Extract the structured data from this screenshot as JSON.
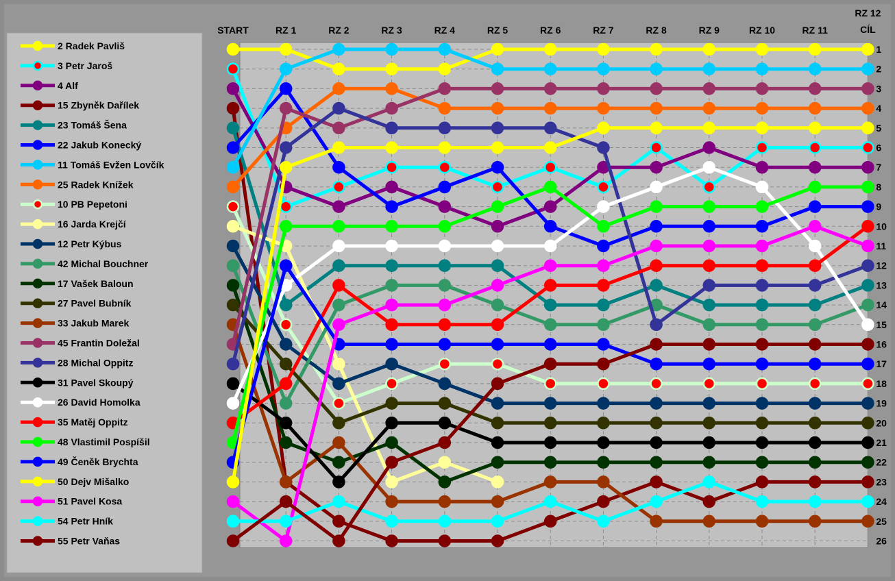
{
  "chart_data": {
    "type": "line",
    "title": "",
    "xlabel": "",
    "ylabel": "",
    "categories": [
      "START",
      "RZ 1",
      "RZ 2",
      "RZ 3",
      "RZ 4",
      "RZ 5",
      "RZ 6",
      "RZ 7",
      "RZ 8",
      "RZ 9",
      "RZ 10",
      "RZ 11",
      "RZ 12 CÍL"
    ],
    "category_labels": [
      [
        "START"
      ],
      [
        "RZ 1"
      ],
      [
        "RZ 2"
      ],
      [
        "RZ 3"
      ],
      [
        "RZ 4"
      ],
      [
        "RZ 5"
      ],
      [
        "RZ 6"
      ],
      [
        "RZ 7"
      ],
      [
        "RZ 8"
      ],
      [
        "RZ 9"
      ],
      [
        "RZ 10"
      ],
      [
        "RZ 11"
      ],
      [
        "RZ 12",
        "CÍL"
      ]
    ],
    "y_positions": [
      "1",
      "2",
      "3",
      "4",
      "5",
      "6",
      "7",
      "8",
      "9",
      "10",
      "11",
      "12",
      "13",
      "14",
      "15",
      "16",
      "17",
      "18",
      "19",
      "20",
      "21",
      "22",
      "23",
      "24",
      "25",
      "26"
    ],
    "ylim": [
      1,
      26
    ],
    "y_inverted": true,
    "grid": true,
    "legend_placement": "left",
    "series": [
      {
        "name": "2 Radek Pavliš",
        "color": "#ffff00",
        "marker_fill": "#ffff00",
        "values": [
          1,
          1,
          2,
          2,
          2,
          1,
          1,
          1,
          1,
          1,
          1,
          1,
          1
        ]
      },
      {
        "name": "3 Petr Jaroš",
        "color": "#00ffff",
        "marker_fill": "#ff0000",
        "values": [
          2,
          9,
          8,
          7,
          7,
          8,
          7,
          8,
          6,
          8,
          6,
          6,
          6
        ]
      },
      {
        "name": "4 Alf",
        "color": "#800080",
        "marker_fill": "#800080",
        "values": [
          3,
          8,
          9,
          8,
          9,
          10,
          9,
          7,
          7,
          6,
          7,
          7,
          7
        ]
      },
      {
        "name": "15 Zbyněk Dařílek",
        "color": "#800000",
        "marker_fill": "#800000",
        "values": [
          4,
          23,
          25,
          26,
          26,
          26,
          25,
          24,
          23,
          24,
          23,
          23,
          23
        ]
      },
      {
        "name": "23 Tomáš Šena",
        "color": "#008080",
        "marker_fill": "#008080",
        "values": [
          5,
          14,
          12,
          12,
          12,
          12,
          14,
          14,
          13,
          14,
          14,
          14,
          13
        ]
      },
      {
        "name": "22 Jakub Konecký",
        "color": "#0000ff",
        "marker_fill": "#0000ff",
        "values": [
          6,
          3,
          7,
          9,
          8,
          7,
          10,
          11,
          10,
          10,
          10,
          9,
          9
        ]
      },
      {
        "name": "11 Tomáš Evžen Lovčík",
        "color": "#00ccff",
        "marker_fill": "#00ccff",
        "values": [
          7,
          2,
          1,
          1,
          1,
          2,
          2,
          2,
          2,
          2,
          2,
          2,
          2
        ]
      },
      {
        "name": "25 Radek Knížek",
        "color": "#ff6600",
        "marker_fill": "#ff6600",
        "values": [
          8,
          5,
          3,
          3,
          4,
          4,
          4,
          4,
          4,
          4,
          4,
          4,
          4
        ]
      },
      {
        "name": "10 PB Pepetoni",
        "color": "#ccffcc",
        "marker_fill": "#ff0000",
        "values": [
          9,
          15,
          19,
          18,
          17,
          17,
          18,
          18,
          18,
          18,
          18,
          18,
          18
        ]
      },
      {
        "name": "16 Jarda Krejčí",
        "color": "#ffff99",
        "marker_fill": "#ffff99",
        "values": [
          10,
          11,
          17,
          23,
          22,
          23,
          null,
          null,
          null,
          null,
          null,
          null,
          null
        ]
      },
      {
        "name": "12 Petr Kýbus",
        "color": "#003366",
        "marker_fill": "#003366",
        "values": [
          11,
          16,
          18,
          17,
          18,
          19,
          19,
          19,
          19,
          19,
          19,
          19,
          19
        ]
      },
      {
        "name": "42 Michal Bouchner",
        "color": "#339966",
        "marker_fill": "#339966",
        "values": [
          12,
          19,
          14,
          13,
          13,
          14,
          15,
          15,
          14,
          15,
          15,
          15,
          14
        ]
      },
      {
        "name": "17 Vašek Baloun",
        "color": "#003300",
        "marker_fill": "#003300",
        "values": [
          13,
          21,
          22,
          21,
          23,
          22,
          22,
          22,
          22,
          22,
          22,
          22,
          22
        ]
      },
      {
        "name": "27 Pavel Bubník",
        "color": "#333300",
        "marker_fill": "#333300",
        "values": [
          14,
          17,
          20,
          19,
          19,
          20,
          20,
          20,
          20,
          20,
          20,
          20,
          20
        ]
      },
      {
        "name": "33 Jakub Marek",
        "color": "#993300",
        "marker_fill": "#993300",
        "values": [
          15,
          23,
          21,
          24,
          24,
          24,
          23,
          23,
          25,
          25,
          25,
          25,
          25
        ]
      },
      {
        "name": "45 Frantin Doležal",
        "color": "#993366",
        "marker_fill": "#993366",
        "values": [
          16,
          4,
          5,
          4,
          3,
          3,
          3,
          3,
          3,
          3,
          3,
          3,
          3
        ]
      },
      {
        "name": "28 Michal Oppitz",
        "color": "#333399",
        "marker_fill": "#333399",
        "values": [
          17,
          6,
          4,
          5,
          5,
          5,
          5,
          6,
          15,
          13,
          13,
          13,
          12
        ]
      },
      {
        "name": "31 Pavel Skoupý",
        "color": "#000000",
        "marker_fill": "#000000",
        "values": [
          18,
          20,
          23,
          20,
          20,
          21,
          21,
          21,
          21,
          21,
          21,
          21,
          21
        ]
      },
      {
        "name": "26 David Homolka",
        "color": "#ffffff",
        "marker_fill": "#ffffff",
        "values": [
          19,
          13,
          11,
          11,
          11,
          11,
          11,
          9,
          8,
          7,
          8,
          11,
          15
        ]
      },
      {
        "name": "35 Matěj Oppitz",
        "color": "#ff0000",
        "marker_fill": "#ff0000",
        "values": [
          20,
          18,
          13,
          15,
          15,
          15,
          13,
          13,
          12,
          12,
          12,
          12,
          10
        ]
      },
      {
        "name": "48 Vlastimil Pospíšil",
        "color": "#00ff00",
        "marker_fill": "#00ff00",
        "values": [
          21,
          10,
          10,
          10,
          10,
          9,
          8,
          10,
          9,
          9,
          9,
          8,
          8
        ]
      },
      {
        "name": "49 Čeněk Brychta",
        "color": "#0000ff",
        "marker_fill": "#0000ff",
        "values": [
          22,
          12,
          16,
          16,
          16,
          16,
          16,
          16,
          17,
          17,
          17,
          17,
          17
        ]
      },
      {
        "name": "50 Dejv Mišalko",
        "color": "#ffff00",
        "marker_fill": "#ffff00",
        "values": [
          23,
          7,
          6,
          6,
          6,
          6,
          6,
          5,
          5,
          5,
          5,
          5,
          5
        ]
      },
      {
        "name": "51 Pavel Kosa",
        "color": "#ff00ff",
        "marker_fill": "#ff00ff",
        "values": [
          24,
          26,
          15,
          14,
          14,
          13,
          12,
          12,
          11,
          11,
          11,
          10,
          11
        ]
      },
      {
        "name": "54 Petr Hník",
        "color": "#00ffff",
        "marker_fill": "#00ffff",
        "values": [
          25,
          25,
          24,
          25,
          25,
          25,
          24,
          25,
          24,
          23,
          24,
          24,
          24
        ]
      },
      {
        "name": "55 Petr Vaňas",
        "color": "#800000",
        "marker_fill": "#800000",
        "values": [
          26,
          24,
          26,
          22,
          21,
          18,
          17,
          17,
          16,
          16,
          16,
          16,
          16
        ]
      }
    ]
  }
}
